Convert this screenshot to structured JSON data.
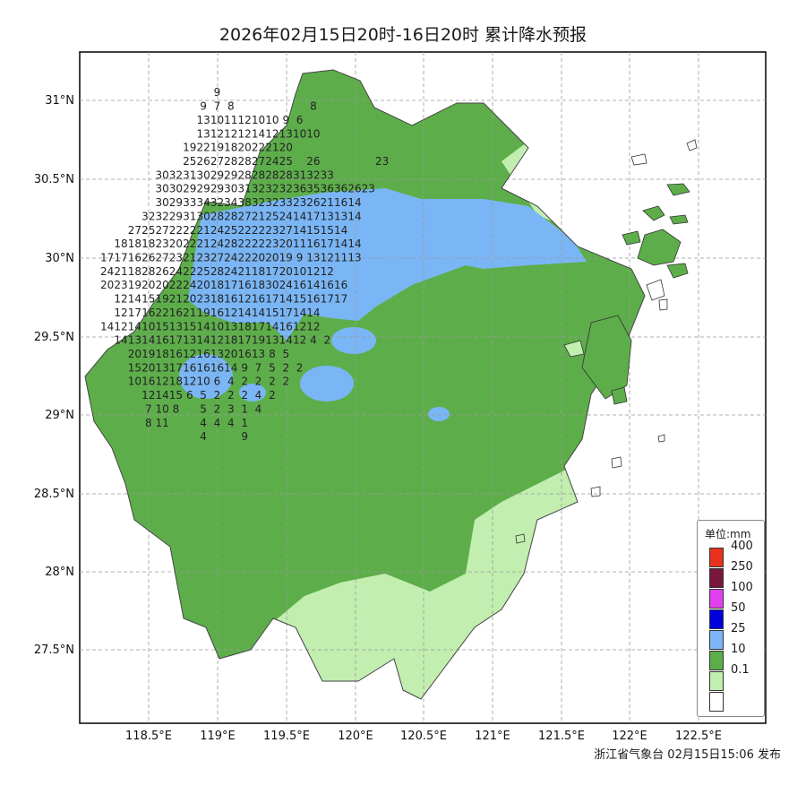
{
  "title": "2026年02月15日20时-16日20时 累计降水预报",
  "footer": "浙江省气象台 02月15日15:06 发布",
  "colors": {
    "cat_0_1": "#c2eeb0",
    "cat_10": "#5dae4a",
    "cat_25": "#7ab6f5",
    "cat_50": "#0000dd",
    "cat_100": "#e040f0",
    "cat_250": "#78163c",
    "cat_400": "#e8321e",
    "no_rain": "#ffffff"
  },
  "axes": {
    "lat_labels": [
      "31°N",
      "30.5°N",
      "30°N",
      "29.5°N",
      "29°N",
      "28.5°N",
      "28°N",
      "27.5°N"
    ],
    "lon_labels": [
      "118.5°E",
      "119°E",
      "119.5°E",
      "120°E",
      "120.5°E",
      "121°E",
      "121.5°E",
      "122°E",
      "122.5°E"
    ]
  },
  "legend": {
    "title": "单位:mm",
    "items": [
      {
        "label": "400",
        "color": "#e8321e"
      },
      {
        "label": "250",
        "color": "#78163c"
      },
      {
        "label": "100",
        "color": "#e040f0"
      },
      {
        "label": "50",
        "color": "#0000dd"
      },
      {
        "label": "25",
        "color": "#7ab6f5"
      },
      {
        "label": "10",
        "color": "#5dae4a"
      },
      {
        "label": "0.1",
        "color": "#c2eeb0"
      },
      {
        "label": "",
        "color": "#ffffff"
      }
    ]
  },
  "grid_values": {
    "lat_start": 31.05,
    "lat_step": -0.0875,
    "lon_start": 118.1,
    "lon_step": 0.1,
    "rows": [
      [
        "",
        "",
        "",
        "",
        "",
        "",
        "",
        "",
        "",
        9,
        "",
        "",
        "",
        "",
        "",
        "",
        "",
        "",
        "",
        "",
        "",
        "",
        "",
        "",
        "",
        "",
        "",
        "",
        "",
        "",
        "",
        ""
      ],
      [
        "",
        "",
        "",
        "",
        "",
        "",
        "",
        "",
        9,
        7,
        8,
        "",
        "",
        "",
        "",
        "",
        8,
        "",
        "",
        "",
        "",
        "",
        "",
        "",
        "",
        "",
        "",
        "",
        "",
        "",
        "",
        ""
      ],
      [
        "",
        "",
        "",
        "",
        "",
        "",
        "",
        "",
        13,
        10,
        11,
        12,
        10,
        10,
        9,
        6,
        "",
        "",
        "",
        "",
        "",
        "",
        "",
        "",
        "",
        "",
        "",
        "",
        "",
        "",
        "",
        ""
      ],
      [
        "",
        "",
        "",
        "",
        "",
        "",
        "",
        "",
        13,
        12,
        12,
        12,
        14,
        12,
        13,
        10,
        10,
        "",
        "",
        "",
        "",
        "",
        "",
        "",
        "",
        "",
        "",
        "",
        "",
        "",
        "",
        ""
      ],
      [
        "",
        "",
        "",
        "",
        "",
        "",
        "",
        19,
        22,
        19,
        18,
        20,
        22,
        21,
        20,
        "",
        "",
        "",
        "",
        "",
        "",
        "",
        "",
        "",
        "",
        "",
        "",
        "",
        "",
        "",
        "",
        ""
      ],
      [
        "",
        "",
        "",
        "",
        "",
        "",
        "",
        25,
        26,
        27,
        28,
        28,
        27,
        24,
        25,
        "",
        26,
        "",
        "",
        "",
        "",
        23,
        "",
        "",
        "",
        "",
        "",
        "",
        "",
        "",
        "",
        ""
      ],
      [
        "",
        "",
        "",
        "",
        "",
        30,
        32,
        31,
        30,
        29,
        29,
        28,
        28,
        28,
        28,
        31,
        32,
        33,
        "",
        "",
        "",
        "",
        "",
        "",
        "",
        "",
        "",
        "",
        "",
        "",
        "",
        ""
      ],
      [
        "",
        "",
        "",
        "",
        "",
        30,
        30,
        29,
        29,
        29,
        30,
        31,
        32,
        32,
        32,
        36,
        35,
        36,
        36,
        26,
        23,
        "",
        "",
        "",
        "",
        "",
        "",
        "",
        "",
        "",
        "",
        ""
      ],
      [
        "",
        "",
        "",
        "",
        "",
        30,
        29,
        33,
        34,
        32,
        34,
        38,
        32,
        32,
        33,
        23,
        26,
        21,
        16,
        14,
        "",
        "",
        "",
        "",
        "",
        "",
        "",
        "",
        "",
        "",
        "",
        ""
      ],
      [
        "",
        "",
        "",
        "",
        32,
        32,
        29,
        31,
        30,
        28,
        28,
        27,
        21,
        25,
        24,
        14,
        17,
        13,
        13,
        14,
        "",
        "",
        "",
        "",
        "",
        "",
        "",
        "",
        "",
        "",
        "",
        ""
      ],
      [
        "",
        "",
        "",
        27,
        25,
        27,
        22,
        22,
        21,
        24,
        25,
        22,
        22,
        23,
        27,
        14,
        15,
        15,
        14,
        "",
        "",
        "",
        "",
        "",
        "",
        "",
        "",
        "",
        "",
        "",
        "",
        ""
      ],
      [
        "",
        "",
        18,
        18,
        18,
        23,
        20,
        22,
        21,
        24,
        28,
        22,
        22,
        23,
        20,
        11,
        16,
        17,
        14,
        14,
        "",
        "",
        "",
        "",
        "",
        "",
        "",
        "",
        "",
        "",
        "",
        ""
      ],
      [
        "",
        17,
        17,
        16,
        26,
        27,
        23,
        21,
        23,
        27,
        24,
        22,
        20,
        20,
        19,
        9,
        13,
        12,
        11,
        13,
        "",
        "",
        "",
        "",
        "",
        "",
        "",
        "",
        "",
        "",
        "",
        ""
      ],
      [
        "",
        24,
        21,
        18,
        28,
        26,
        24,
        22,
        25,
        28,
        24,
        21,
        18,
        17,
        20,
        10,
        12,
        12,
        "",
        "",
        "",
        "",
        "",
        "",
        "",
        "",
        "",
        "",
        "",
        "",
        "",
        ""
      ],
      [
        "",
        20,
        23,
        19,
        20,
        20,
        22,
        24,
        20,
        18,
        17,
        16,
        18,
        30,
        24,
        16,
        14,
        16,
        16,
        "",
        "",
        "",
        "",
        "",
        "",
        "",
        "",
        "",
        "",
        "",
        "",
        ""
      ],
      [
        "",
        "",
        12,
        14,
        15,
        19,
        21,
        20,
        23,
        18,
        16,
        12,
        16,
        17,
        14,
        15,
        16,
        17,
        17,
        "",
        "",
        "",
        "",
        "",
        "",
        "",
        "",
        "",
        "",
        "",
        "",
        ""
      ],
      [
        "",
        "",
        12,
        17,
        16,
        22,
        16,
        21,
        19,
        16,
        12,
        14,
        14,
        15,
        17,
        14,
        14,
        "",
        "",
        "",
        "",
        "",
        "",
        "",
        "",
        "",
        "",
        "",
        "",
        "",
        "",
        ""
      ],
      [
        "",
        14,
        12,
        14,
        10,
        15,
        13,
        15,
        14,
        10,
        13,
        18,
        17,
        14,
        16,
        12,
        12,
        "",
        "",
        "",
        "",
        "",
        "",
        "",
        "",
        "",
        "",
        "",
        "",
        "",
        "",
        ""
      ],
      [
        "",
        "",
        14,
        13,
        14,
        16,
        17,
        13,
        14,
        12,
        18,
        17,
        19,
        13,
        14,
        12,
        4,
        2,
        "",
        "",
        "",
        "",
        "",
        "",
        "",
        "",
        "",
        "",
        "",
        "",
        "",
        ""
      ],
      [
        "",
        "",
        "",
        20,
        19,
        18,
        16,
        12,
        16,
        13,
        20,
        16,
        13,
        8,
        5,
        "",
        "",
        "",
        "",
        "",
        "",
        "",
        "",
        "",
        "",
        "",
        "",
        "",
        "",
        "",
        "",
        ""
      ],
      [
        "",
        "",
        "",
        15,
        20,
        13,
        17,
        16,
        16,
        16,
        14,
        9,
        7,
        5,
        2,
        2,
        "",
        "",
        "",
        "",
        "",
        "",
        "",
        "",
        "",
        "",
        "",
        "",
        "",
        "",
        "",
        ""
      ],
      [
        "",
        "",
        "",
        10,
        16,
        12,
        18,
        12,
        10,
        6,
        4,
        2,
        2,
        2,
        2,
        "",
        "",
        "",
        "",
        "",
        "",
        "",
        "",
        "",
        "",
        "",
        "",
        "",
        "",
        "",
        "",
        ""
      ],
      [
        "",
        "",
        "",
        "",
        12,
        14,
        15,
        6,
        5,
        2,
        2,
        2,
        4,
        2,
        "",
        "",
        "",
        "",
        "",
        "",
        "",
        "",
        "",
        "",
        "",
        "",
        "",
        "",
        "",
        "",
        "",
        ""
      ],
      [
        "",
        "",
        "",
        "",
        7,
        10,
        8,
        "",
        5,
        2,
        3,
        1,
        4,
        "",
        "",
        "",
        "",
        "",
        "",
        "",
        "",
        "",
        "",
        "",
        "",
        "",
        "",
        "",
        "",
        "",
        "",
        ""
      ],
      [
        "",
        "",
        "",
        "",
        8,
        11,
        "",
        "",
        4,
        4,
        4,
        1,
        "",
        "",
        "",
        "",
        "",
        "",
        "",
        "",
        "",
        "",
        "",
        "",
        "",
        "",
        "",
        "",
        "",
        "",
        "",
        ""
      ],
      [
        "",
        "",
        "",
        "",
        "",
        "",
        "",
        "",
        4,
        "",
        "",
        9,
        "",
        "",
        "",
        "",
        "",
        "",
        "",
        "",
        "",
        "",
        "",
        "",
        "",
        "",
        "",
        "",
        "",
        "",
        "",
        ""
      ]
    ]
  }
}
